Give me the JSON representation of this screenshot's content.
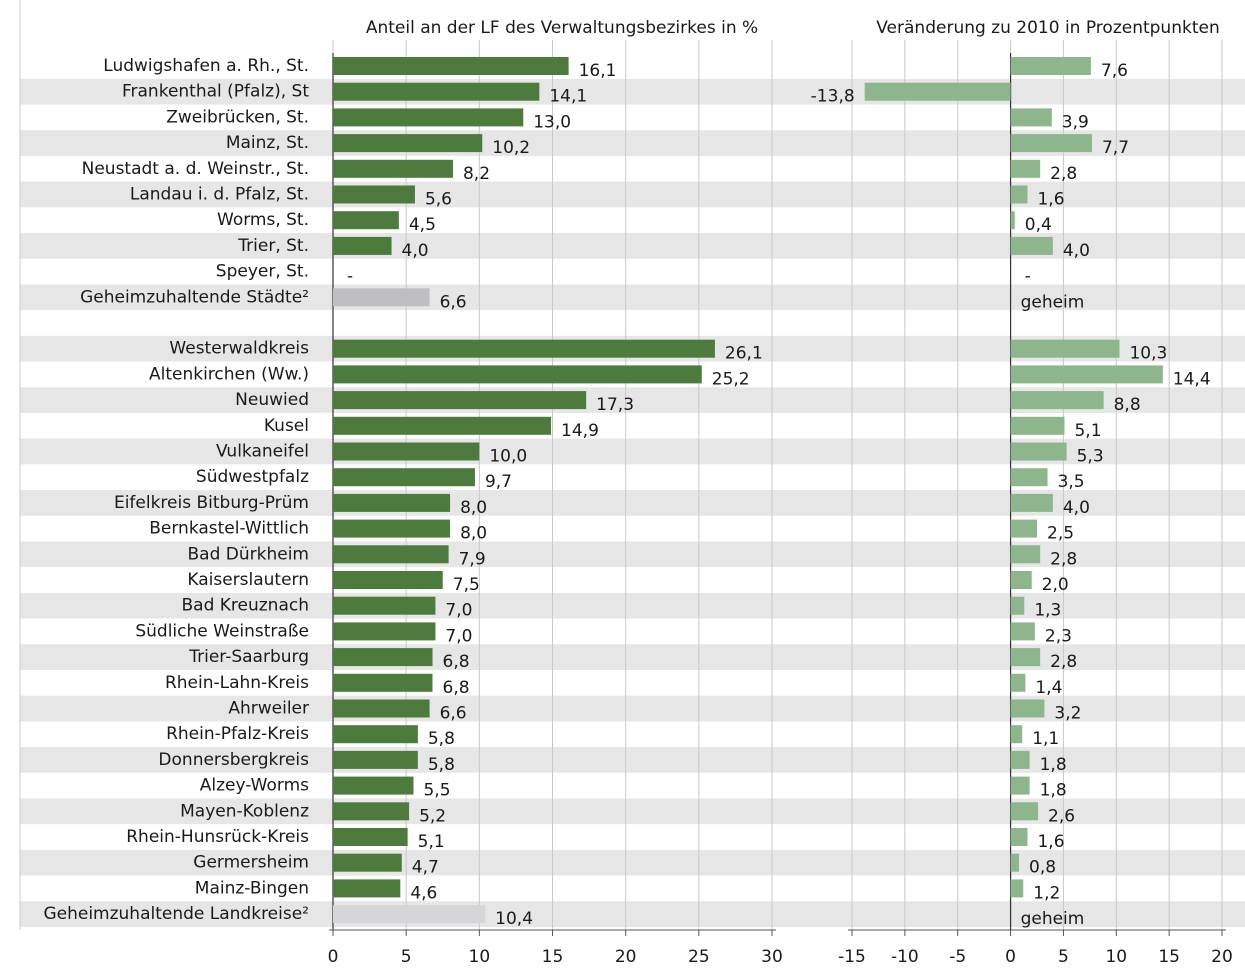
{
  "chart_data": [
    {
      "type": "bar",
      "orientation": "horizontal",
      "title": "Anteil an der LF des Verwaltungsbezirkes in %",
      "categories": [
        "Ludwigshafen a. Rh., St.",
        "Frankenthal (Pfalz), St",
        "Zweibrücken, St.",
        "Mainz, St.",
        "Neustadt a. d. Weinstr., St.",
        "Landau i. d. Pfalz, St.",
        "Worms, St.",
        "Trier, St.",
        "Speyer, St.",
        "Geheimzuhaltende Städte²",
        null,
        "Westerwaldkreis",
        "Altenkirchen (Ww.)",
        "Neuwied",
        "Kusel",
        "Vulkaneifel",
        "Südwestpfalz",
        "Eifelkreis Bitburg-Prüm",
        "Bernkastel-Wittlich",
        "Bad Dürkheim",
        "Kaiserslautern",
        "Bad Kreuznach",
        "Südliche Weinstraße",
        "Trier-Saarburg",
        "Rhein-Lahn-Kreis",
        "Ahrweiler",
        "Rhein-Pfalz-Kreis",
        "Donnersbergkreis",
        "Alzey-Worms",
        "Mayen-Koblenz",
        "Rhein-Hunsrück-Kreis",
        "Germersheim",
        "Mainz-Bingen",
        "Geheimzuhaltende Landkreise²"
      ],
      "values": [
        16.1,
        14.1,
        13.0,
        10.2,
        8.2,
        5.6,
        4.5,
        4.0,
        null,
        6.6,
        null,
        26.1,
        25.2,
        17.3,
        14.9,
        10.0,
        9.7,
        8.0,
        8.0,
        7.9,
        7.5,
        7.0,
        7.0,
        6.8,
        6.8,
        6.6,
        5.8,
        5.8,
        5.5,
        5.2,
        5.1,
        4.7,
        4.6,
        10.4
      ],
      "value_labels": [
        "16,1",
        "14,1",
        "13,0",
        "10,2",
        "8,2",
        "5,6",
        "4,5",
        "4,0",
        "-",
        "6,6",
        null,
        "26,1",
        "25,2",
        "17,3",
        "14,9",
        "10,0",
        "9,7",
        "8,0",
        "8,0",
        "7,9",
        "7,5",
        "7,0",
        "7,0",
        "6,8",
        "6,8",
        "6,6",
        "5,8",
        "5,8",
        "5,5",
        "5,2",
        "5,1",
        "4,7",
        "4,6",
        "10,4"
      ],
      "colors": [
        "#4d7a3d",
        "#4d7a3d",
        "#4d7a3d",
        "#4d7a3d",
        "#4d7a3d",
        "#4d7a3d",
        "#4d7a3d",
        "#4d7a3d",
        "#4d7a3d",
        "#bebec3",
        "#4d7a3d",
        "#4d7a3d",
        "#4d7a3d",
        "#4d7a3d",
        "#4d7a3d",
        "#4d7a3d",
        "#4d7a3d",
        "#4d7a3d",
        "#4d7a3d",
        "#4d7a3d",
        "#4d7a3d",
        "#4d7a3d",
        "#4d7a3d",
        "#4d7a3d",
        "#4d7a3d",
        "#4d7a3d",
        "#4d7a3d",
        "#4d7a3d",
        "#4d7a3d",
        "#4d7a3d",
        "#4d7a3d",
        "#4d7a3d",
        "#4d7a3d",
        "#d6d6d8"
      ],
      "xlim": [
        0,
        30
      ],
      "xticks": [
        0,
        5,
        10,
        15,
        20,
        25,
        30
      ],
      "grid": true
    },
    {
      "type": "bar",
      "orientation": "horizontal",
      "title": "Veränderung zu 2010 in Prozentpunkten",
      "values": [
        7.6,
        -13.8,
        3.9,
        7.7,
        2.8,
        1.6,
        0.4,
        4.0,
        null,
        null,
        null,
        10.3,
        14.4,
        8.8,
        5.1,
        5.3,
        3.5,
        4.0,
        2.5,
        2.8,
        2.0,
        1.3,
        2.3,
        2.8,
        1.4,
        3.2,
        1.1,
        1.8,
        1.8,
        2.6,
        1.6,
        0.8,
        1.2,
        null
      ],
      "value_labels": [
        "7,6",
        "-13,8",
        "3,9",
        "7,7",
        "2,8",
        "1,6",
        "0,4",
        "4,0",
        "-",
        "geheim",
        null,
        "10,3",
        "14,4",
        "8,8",
        "5,1",
        "5,3",
        "3,5",
        "4,0",
        "2,5",
        "2,8",
        "2,0",
        "1,3",
        "2,3",
        "2,8",
        "1,4",
        "3,2",
        "1,1",
        "1,8",
        "1,8",
        "2,6",
        "1,6",
        "0,8",
        "1,2",
        "geheim"
      ],
      "color": "#8db68c",
      "xlim": [
        -15,
        20
      ],
      "xticks": [
        -15,
        -10,
        -5,
        0,
        5,
        10,
        15,
        20
      ],
      "grid": true
    }
  ]
}
